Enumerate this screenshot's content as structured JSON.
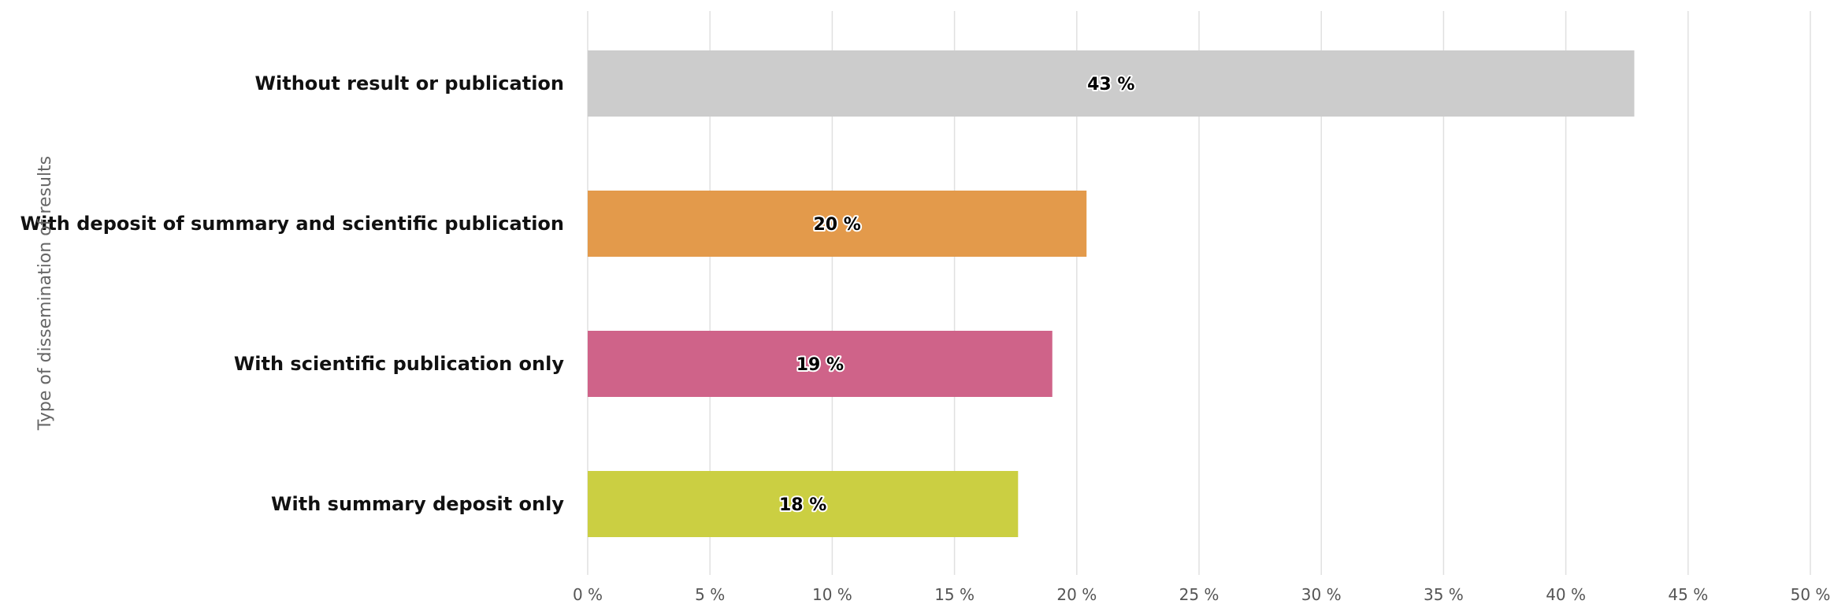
{
  "chart_data": {
    "type": "bar",
    "orientation": "horizontal",
    "ylabel": "Type of dissemination of results",
    "xlabel": "",
    "xlim": [
      0,
      50
    ],
    "x_ticks": [
      0,
      5,
      10,
      15,
      20,
      25,
      30,
      35,
      40,
      45,
      50
    ],
    "x_tick_labels": [
      "0 %",
      "5 %",
      "10 %",
      "15 %",
      "20 %",
      "25 %",
      "30 %",
      "35 %",
      "40 %",
      "45 %",
      "50 %"
    ],
    "grid": true,
    "categories": [
      "Without result or publication",
      "With deposit of summary and scientific publication",
      "With scientific publication only",
      "With summary deposit only"
    ],
    "values": [
      42.8,
      20.4,
      19.0,
      17.6
    ],
    "data_labels": [
      "43 %",
      "20 %",
      "19 %",
      "18 %"
    ],
    "colors": [
      "#cccccc",
      "#e39a4b",
      "#cf6389",
      "#cbcf42"
    ]
  }
}
